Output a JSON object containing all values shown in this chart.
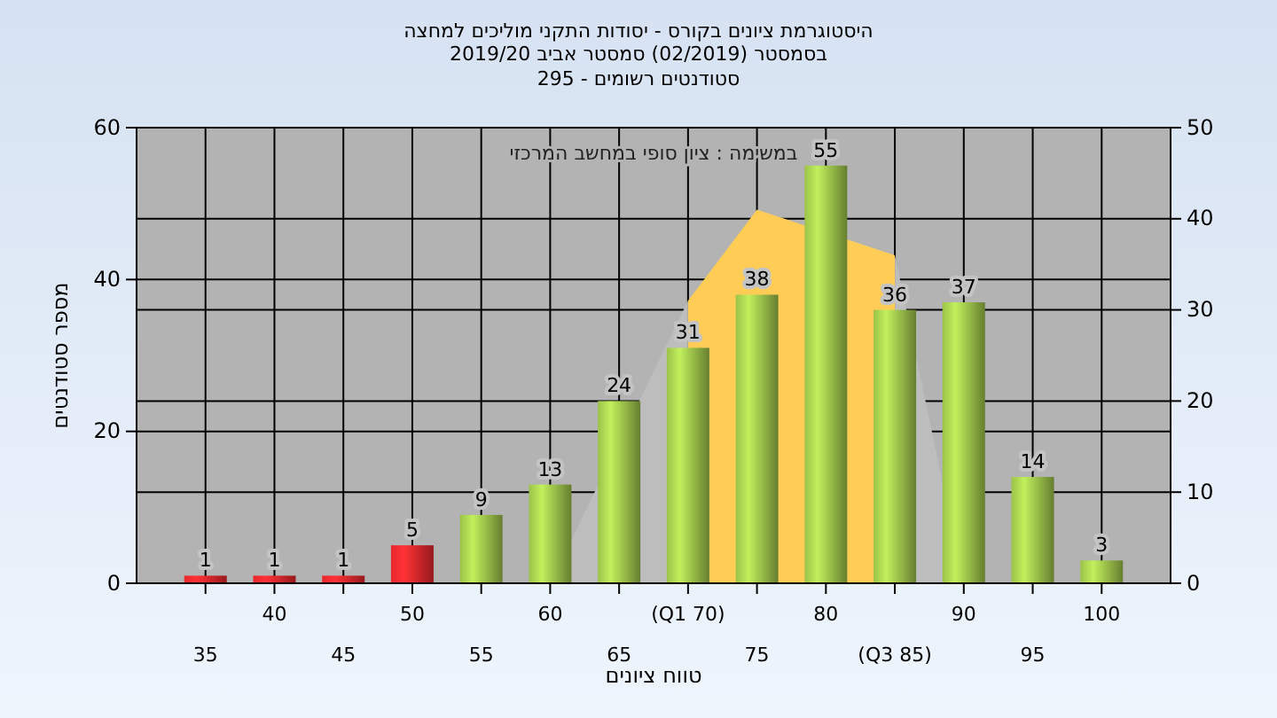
{
  "chart_data": {
    "type": "bar",
    "title": "היסטוגרמת ציונים בקורס - יסודות התקני מוליכים למחצה",
    "subtitle": "בסמסטר  (02/2019)  סמסטר אביב 2019/20",
    "annotations": [
      "סטודנטים רשומים - 295",
      "במשימה : ציון סופי במחשב המרכזי"
    ],
    "xlabel": "טווח ציונים",
    "ylabel": "מספר סטודנטים",
    "categories": [
      "35",
      "40",
      "45",
      "50",
      "55",
      "60",
      "65",
      "(Q1 70)",
      "75",
      "80",
      "(Q3 85)",
      "90",
      "95",
      "100"
    ],
    "series": [
      {
        "type": "area",
        "axis": "y2",
        "color": "#bdbdbd",
        "values": [
          null,
          null,
          null,
          null,
          null,
          0,
          null,
          31,
          null,
          null,
          null,
          null,
          null,
          null
        ]
      },
      {
        "type": "area",
        "axis": "y2",
        "color": "#bdbdbd",
        "values": [
          null,
          null,
          null,
          null,
          null,
          null,
          null,
          null,
          null,
          null,
          36,
          0,
          null,
          null
        ]
      },
      {
        "type": "area",
        "axis": "y2",
        "color": "#ffcc55",
        "values": [
          null,
          null,
          null,
          null,
          null,
          null,
          null,
          31,
          41,
          null,
          36,
          null,
          null,
          null
        ]
      },
      {
        "value_labels": [
          "1",
          "1",
          "1",
          "5",
          "9",
          "13",
          "24",
          "31",
          "38",
          "55",
          "36",
          "37",
          "14",
          "3"
        ],
        "colors": [
          "#e8282c",
          "#e8282c",
          "#e8282c",
          "#e8282c",
          "#9cc24a",
          "#9cc24a",
          "#9cc24a",
          "#9cc24a",
          "#9cc24a",
          "#9cc24a",
          "#9cc24a",
          "#9cc24a",
          "#9cc24a",
          "#9cc24a"
        ],
        "values": [
          1,
          1,
          1,
          5,
          9,
          13,
          24,
          31,
          38,
          55,
          36,
          37,
          14,
          3
        ]
      }
    ],
    "grid": true,
    "ylim": [
      0,
      60
    ],
    "yticks": [
      0,
      20,
      40,
      60
    ],
    "y2lim": [
      0,
      50
    ],
    "y2ticks": [
      0,
      10,
      20,
      30,
      40,
      50
    ]
  }
}
